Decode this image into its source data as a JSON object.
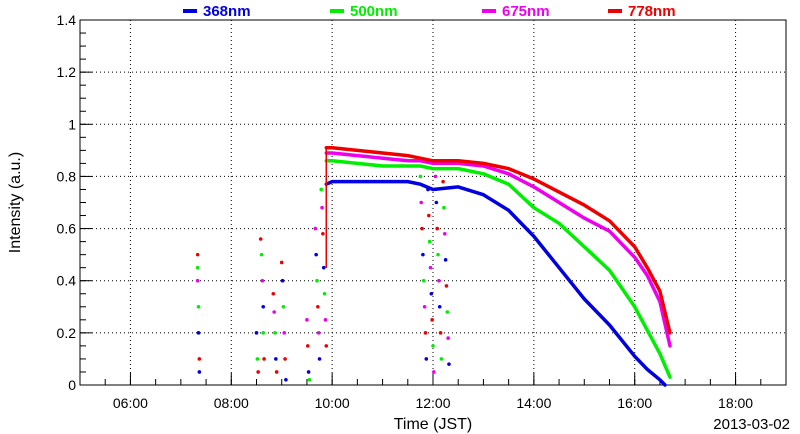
{
  "chart_data": {
    "type": "scatter",
    "title": "",
    "xlabel": "Time (JST)",
    "ylabel": "Intensity (a.u.)",
    "date_label": "2013-03-02",
    "xlim": [
      "05:00",
      "19:00"
    ],
    "ylim": [
      0,
      1.4
    ],
    "x_ticks": [
      "06:00",
      "08:00",
      "10:00",
      "12:00",
      "14:00",
      "16:00",
      "18:00"
    ],
    "y_ticks": [
      "0",
      "0.2",
      "0.4",
      "0.6",
      "0.8",
      "1",
      "1.2",
      "1.4"
    ],
    "grid": true,
    "legend_position": "top",
    "series": [
      {
        "name": "368nm",
        "color": "#0000e0",
        "x": [
          "09:53",
          "10:00",
          "10:30",
          "11:00",
          "11:30",
          "11:45",
          "12:00",
          "12:30",
          "13:00",
          "13:30",
          "14:00",
          "14:30",
          "15:00",
          "15:30",
          "16:00",
          "16:15",
          "16:30",
          "16:36"
        ],
        "y": [
          0.77,
          0.78,
          0.78,
          0.78,
          0.78,
          0.77,
          0.75,
          0.76,
          0.73,
          0.67,
          0.57,
          0.45,
          0.33,
          0.23,
          0.11,
          0.06,
          0.02,
          0.0
        ]
      },
      {
        "name": "500nm",
        "color": "#00ee00",
        "x": [
          "09:53",
          "10:00",
          "10:30",
          "11:00",
          "11:30",
          "11:45",
          "12:00",
          "12:30",
          "13:00",
          "13:30",
          "14:00",
          "14:30",
          "15:00",
          "15:30",
          "16:00",
          "16:15",
          "16:30",
          "16:42"
        ],
        "y": [
          0.86,
          0.86,
          0.85,
          0.84,
          0.84,
          0.84,
          0.83,
          0.83,
          0.81,
          0.77,
          0.68,
          0.62,
          0.53,
          0.44,
          0.3,
          0.21,
          0.12,
          0.03
        ]
      },
      {
        "name": "675nm",
        "color": "#ee00ee",
        "x": [
          "09:53",
          "10:00",
          "10:30",
          "11:00",
          "11:30",
          "11:45",
          "12:00",
          "12:30",
          "13:00",
          "13:30",
          "14:00",
          "14:30",
          "15:00",
          "15:30",
          "16:00",
          "16:15",
          "16:30",
          "16:42"
        ],
        "y": [
          0.89,
          0.89,
          0.88,
          0.87,
          0.86,
          0.86,
          0.85,
          0.85,
          0.84,
          0.81,
          0.76,
          0.7,
          0.64,
          0.59,
          0.49,
          0.42,
          0.32,
          0.15
        ]
      },
      {
        "name": "778nm",
        "color": "#ee0000",
        "x": [
          "09:53",
          "10:00",
          "10:30",
          "11:00",
          "11:30",
          "11:45",
          "12:00",
          "12:30",
          "13:00",
          "13:30",
          "14:00",
          "14:30",
          "15:00",
          "15:30",
          "16:00",
          "16:15",
          "16:30",
          "16:42"
        ],
        "y": [
          0.91,
          0.91,
          0.9,
          0.89,
          0.88,
          0.87,
          0.86,
          0.86,
          0.85,
          0.83,
          0.79,
          0.74,
          0.69,
          0.63,
          0.53,
          0.45,
          0.36,
          0.2
        ]
      }
    ],
    "scatter_points": [
      {
        "x": "07:20",
        "y": 0.5,
        "s": 3
      },
      {
        "x": "07:20",
        "y": 0.4,
        "s": 2
      },
      {
        "x": "07:21",
        "y": 0.3,
        "s": 1
      },
      {
        "x": "07:21",
        "y": 0.2,
        "s": 0
      },
      {
        "x": "07:22",
        "y": 0.1,
        "s": 3
      },
      {
        "x": "07:22",
        "y": 0.05,
        "s": 0
      },
      {
        "x": "07:20",
        "y": 0.45,
        "s": 1
      },
      {
        "x": "08:30",
        "y": 0.2,
        "s": 0
      },
      {
        "x": "08:31",
        "y": 0.1,
        "s": 1
      },
      {
        "x": "08:32",
        "y": 0.05,
        "s": 3
      },
      {
        "x": "08:35",
        "y": 0.56,
        "s": 3
      },
      {
        "x": "08:36",
        "y": 0.5,
        "s": 1
      },
      {
        "x": "08:37",
        "y": 0.4,
        "s": 2
      },
      {
        "x": "08:38",
        "y": 0.3,
        "s": 0
      },
      {
        "x": "08:38",
        "y": 0.2,
        "s": 1
      },
      {
        "x": "08:39",
        "y": 0.1,
        "s": 3
      },
      {
        "x": "08:50",
        "y": 0.35,
        "s": 3
      },
      {
        "x": "08:51",
        "y": 0.28,
        "s": 2
      },
      {
        "x": "08:52",
        "y": 0.2,
        "s": 1
      },
      {
        "x": "08:53",
        "y": 0.1,
        "s": 0
      },
      {
        "x": "08:54",
        "y": 0.05,
        "s": 3
      },
      {
        "x": "09:00",
        "y": 0.47,
        "s": 3
      },
      {
        "x": "09:01",
        "y": 0.4,
        "s": 0
      },
      {
        "x": "09:02",
        "y": 0.3,
        "s": 1
      },
      {
        "x": "09:03",
        "y": 0.2,
        "s": 2
      },
      {
        "x": "09:04",
        "y": 0.1,
        "s": 3
      },
      {
        "x": "09:05",
        "y": 0.02,
        "s": 0
      },
      {
        "x": "09:30",
        "y": 0.25,
        "s": 2
      },
      {
        "x": "09:31",
        "y": 0.15,
        "s": 3
      },
      {
        "x": "09:32",
        "y": 0.05,
        "s": 0
      },
      {
        "x": "09:33",
        "y": 0.02,
        "s": 1
      },
      {
        "x": "09:40",
        "y": 0.6,
        "s": 2
      },
      {
        "x": "09:41",
        "y": 0.5,
        "s": 0
      },
      {
        "x": "09:42",
        "y": 0.4,
        "s": 1
      },
      {
        "x": "09:43",
        "y": 0.3,
        "s": 3
      },
      {
        "x": "09:44",
        "y": 0.2,
        "s": 2
      },
      {
        "x": "09:45",
        "y": 0.1,
        "s": 0
      },
      {
        "x": "09:47",
        "y": 0.75,
        "s": 1
      },
      {
        "x": "09:48",
        "y": 0.68,
        "s": 2
      },
      {
        "x": "09:49",
        "y": 0.58,
        "s": 3
      },
      {
        "x": "09:50",
        "y": 0.45,
        "s": 0
      },
      {
        "x": "09:51",
        "y": 0.35,
        "s": 1
      },
      {
        "x": "09:52",
        "y": 0.25,
        "s": 2
      },
      {
        "x": "09:53",
        "y": 0.15,
        "s": 3
      },
      {
        "x": "11:45",
        "y": 0.8,
        "s": 1
      },
      {
        "x": "11:46",
        "y": 0.7,
        "s": 2
      },
      {
        "x": "11:47",
        "y": 0.6,
        "s": 3
      },
      {
        "x": "11:48",
        "y": 0.5,
        "s": 0
      },
      {
        "x": "11:49",
        "y": 0.4,
        "s": 1
      },
      {
        "x": "11:50",
        "y": 0.3,
        "s": 2
      },
      {
        "x": "11:51",
        "y": 0.2,
        "s": 3
      },
      {
        "x": "11:52",
        "y": 0.1,
        "s": 0
      },
      {
        "x": "11:54",
        "y": 0.75,
        "s": 0
      },
      {
        "x": "11:55",
        "y": 0.65,
        "s": 3
      },
      {
        "x": "11:56",
        "y": 0.55,
        "s": 1
      },
      {
        "x": "11:57",
        "y": 0.45,
        "s": 2
      },
      {
        "x": "11:58",
        "y": 0.35,
        "s": 0
      },
      {
        "x": "11:59",
        "y": 0.25,
        "s": 3
      },
      {
        "x": "12:00",
        "y": 0.15,
        "s": 1
      },
      {
        "x": "12:01",
        "y": 0.05,
        "s": 2
      },
      {
        "x": "12:03",
        "y": 0.8,
        "s": 2
      },
      {
        "x": "12:04",
        "y": 0.7,
        "s": 0
      },
      {
        "x": "12:05",
        "y": 0.6,
        "s": 3
      },
      {
        "x": "12:06",
        "y": 0.5,
        "s": 1
      },
      {
        "x": "12:07",
        "y": 0.4,
        "s": 2
      },
      {
        "x": "12:08",
        "y": 0.3,
        "s": 0
      },
      {
        "x": "12:09",
        "y": 0.2,
        "s": 3
      },
      {
        "x": "12:10",
        "y": 0.1,
        "s": 1
      },
      {
        "x": "12:12",
        "y": 0.78,
        "s": 3
      },
      {
        "x": "12:13",
        "y": 0.68,
        "s": 1
      },
      {
        "x": "12:14",
        "y": 0.58,
        "s": 2
      },
      {
        "x": "12:15",
        "y": 0.48,
        "s": 0
      },
      {
        "x": "12:16",
        "y": 0.38,
        "s": 3
      },
      {
        "x": "12:17",
        "y": 0.28,
        "s": 1
      },
      {
        "x": "12:18",
        "y": 0.18,
        "s": 2
      },
      {
        "x": "12:19",
        "y": 0.08,
        "s": 0
      }
    ]
  }
}
